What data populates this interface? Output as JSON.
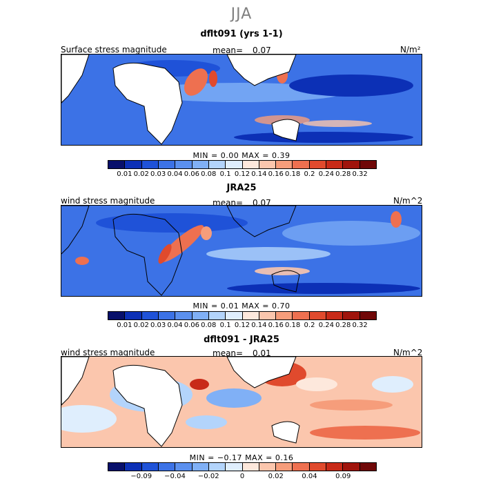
{
  "season": "JJA",
  "colormap": [
    "#08106b",
    "#0c30b6",
    "#1f52d8",
    "#3c72e6",
    "#5b90ef",
    "#80b0f6",
    "#b3d4fb",
    "#dfeefd",
    "#fde8dc",
    "#fbc6ad",
    "#f69d7b",
    "#ee7050",
    "#e04a2d",
    "#c82a18",
    "#a0140c",
    "#700808"
  ],
  "panels": [
    {
      "title": "dflt091 (yrs 1-1)",
      "field": "Surface stress magnitude",
      "mean_label": "mean=",
      "mean_value": "0.07",
      "units": "N/m²",
      "min_label": "MIN =",
      "min_value": "0.00",
      "max_label": "MAX =",
      "max_value": "0.39",
      "ticks": [
        "0.01",
        "0.02",
        "0.03",
        "0.04",
        "0.06",
        "0.08",
        "0.1",
        "0.12",
        "0.14",
        "0.16",
        "0.18",
        "0.2",
        "0.24",
        "0.28",
        "0.32"
      ]
    },
    {
      "title": "JRA25",
      "field": "wind stress magnitude",
      "mean_label": "mean=",
      "mean_value": "0.07",
      "units": "N/m^2",
      "min_label": "MIN =",
      "min_value": "0.01",
      "max_label": "MAX =",
      "max_value": "0.70",
      "ticks": [
        "0.01",
        "0.02",
        "0.03",
        "0.04",
        "0.06",
        "0.08",
        "0.1",
        "0.12",
        "0.14",
        "0.16",
        "0.18",
        "0.2",
        "0.24",
        "0.28",
        "0.32"
      ]
    },
    {
      "title": "dflt091 - JRA25",
      "field": "wind stress magnitude",
      "mean_label": "mean=",
      "mean_value": "0.01",
      "units": "N/m^2",
      "min_label": "MIN =",
      "min_value": "−0.17",
      "max_label": "MAX =",
      "max_value": "0.16",
      "ticks": [
        "−0.09",
        "−0.04",
        "−0.02",
        "0",
        "0.02",
        "0.04",
        "0.09"
      ]
    }
  ]
}
